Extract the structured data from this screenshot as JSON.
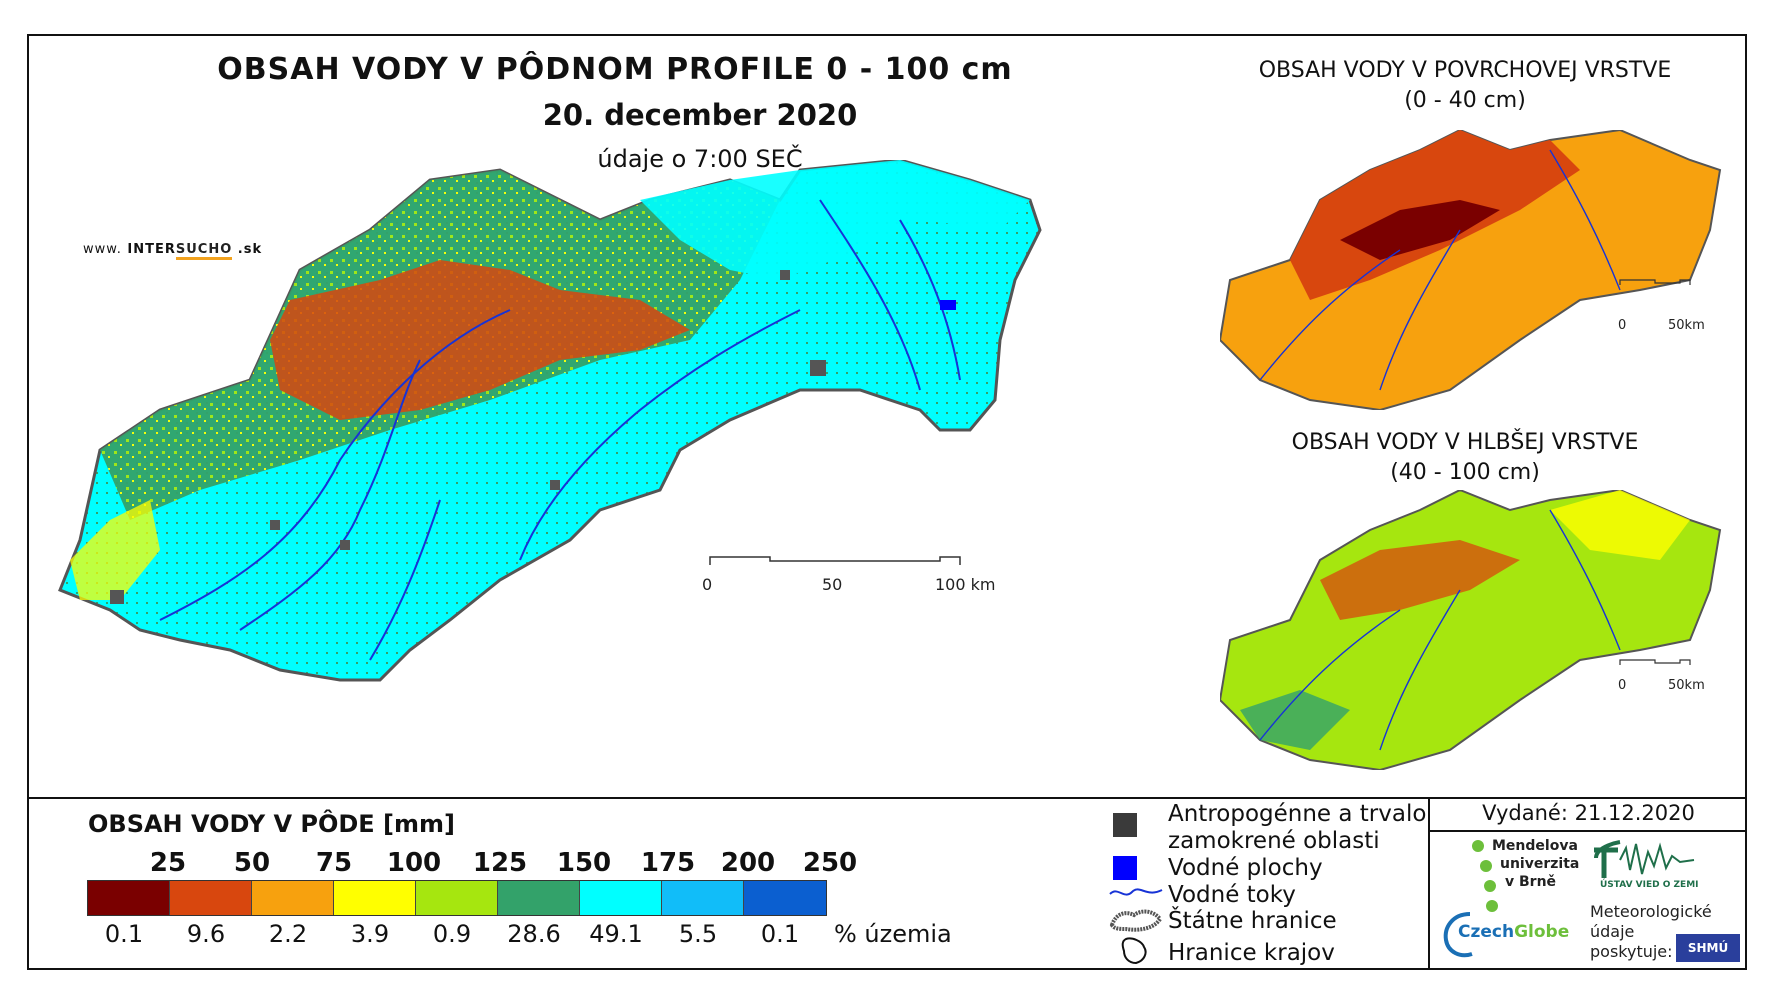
{
  "header": {
    "title": "OBSAH VODY V PÔDNOM PROFILE 0 - 100 cm",
    "date": "20. december 2020",
    "time": "údaje o 7:00 SEČ"
  },
  "brand": {
    "prefix": "www.",
    "name_a": "INTER",
    "name_b": "SUCHO",
    "suffix": ".sk"
  },
  "insets": [
    {
      "title_line1": "OBSAH VODY V POVRCHOVEJ VRSTVE",
      "title_line2": "(0 - 40 cm)",
      "scale_start": "0",
      "scale_end": "50km"
    },
    {
      "title_line1": "OBSAH VODY V HLBŠEJ VRSTVE",
      "title_line2": "(40 - 100 cm)",
      "scale_start": "0",
      "scale_end": "50km"
    }
  ],
  "main_scale": {
    "labels": [
      "0",
      "50",
      "100 km"
    ]
  },
  "legend": {
    "title": "OBSAH VODY V PÔDE [mm]",
    "thresholds": [
      "25",
      "50",
      "75",
      "100",
      "125",
      "150",
      "175",
      "200",
      "250"
    ],
    "colors": [
      "#7a0000",
      "#d8470e",
      "#f7a10e",
      "#ffff00",
      "#a6e60f",
      "#33a26a",
      "#00ffff",
      "#11bdf9",
      "#0b5fd0"
    ],
    "percentages": [
      "0.1",
      "9.6",
      "2.2",
      "3.9",
      "0.9",
      "28.6",
      "49.1",
      "5.5",
      "0.1"
    ],
    "percent_label": "% územia"
  },
  "symbols": {
    "urban_line1": "Antropogénne a trvalo",
    "urban_line2": "zamokrené oblasti",
    "water_bodies": "Vodné plochy",
    "rivers": "Vodné toky",
    "state_border": "Štátne hranice",
    "region_border": "Hranice krajov"
  },
  "issued": "Vydané: 21.12.2020",
  "logos": {
    "mendel_1": "Mendelova",
    "mendel_2": "univerzita",
    "mendel_3": "v Brně",
    "czechglobe_a": "Czech",
    "czechglobe_b": "Globe",
    "ustav": "ÚSTAV VIED O ZEMI",
    "meteo_1": "Meteorologické",
    "meteo_2": "údaje",
    "meteo_3": "poskytuje:",
    "shmu": "SHMÚ"
  }
}
